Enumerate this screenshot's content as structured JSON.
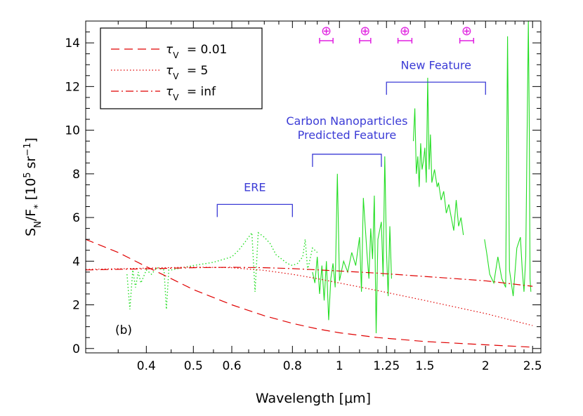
{
  "chart_data": {
    "type": "line",
    "xlabel": "Wavelength [",
    "xlabel_unit": "μm",
    "xlabel_close": "]",
    "ylabel_main": "S",
    "ylabel_sub": "N",
    "ylabel_slash": "/F",
    "ylabel_star": "*",
    "ylabel_bracket": "[10",
    "ylabel_exp5": "5",
    "ylabel_sr": "sr",
    "ylabel_expm1": "−1",
    "ylabel_close": "]",
    "x_scale": "log",
    "xlim": [
      0.3,
      2.6
    ],
    "ylim": [
      -0.2,
      15
    ],
    "x_ticks": [
      {
        "value": 0.4,
        "label": "0.4"
      },
      {
        "value": 0.5,
        "label": "0.5"
      },
      {
        "value": 0.6,
        "label": "0.6"
      },
      {
        "value": 0.8,
        "label": "0.8"
      },
      {
        "value": 1.0,
        "label": "1"
      },
      {
        "value": 1.25,
        "label": "1.25"
      },
      {
        "value": 1.5,
        "label": "1.5"
      },
      {
        "value": 2.0,
        "label": "2"
      },
      {
        "value": 2.5,
        "label": "2.5"
      }
    ],
    "y_ticks": [
      {
        "value": 0,
        "label": "0"
      },
      {
        "value": 2,
        "label": "2"
      },
      {
        "value": 4,
        "label": "4"
      },
      {
        "value": 6,
        "label": "6"
      },
      {
        "value": 8,
        "label": "8"
      },
      {
        "value": 10,
        "label": "10"
      },
      {
        "value": 12,
        "label": "12"
      },
      {
        "value": 14,
        "label": "14"
      }
    ],
    "panel_label": "(b)",
    "legend": {
      "placement": "top-left",
      "symbol": "τ",
      "subscript": "V",
      "entries": [
        {
          "value_text": "= 0.01",
          "style": "dashed",
          "color": "#e00000"
        },
        {
          "value_text": "= 5",
          "style": "dotted",
          "color": "#e00000"
        },
        {
          "value_text": "= inf",
          "style": "dashdot",
          "color": "#e00000"
        }
      ]
    },
    "model_curves": [
      {
        "style": "dashed",
        "color": "#e00000",
        "points": [
          [
            0.3,
            5.0
          ],
          [
            0.35,
            4.4
          ],
          [
            0.4,
            3.75
          ],
          [
            0.45,
            3.2
          ],
          [
            0.5,
            2.7
          ],
          [
            0.6,
            2.0
          ],
          [
            0.7,
            1.5
          ],
          [
            0.8,
            1.15
          ],
          [
            0.9,
            0.9
          ],
          [
            1.0,
            0.72
          ],
          [
            1.2,
            0.5
          ],
          [
            1.5,
            0.32
          ],
          [
            2.0,
            0.17
          ],
          [
            2.5,
            0.06
          ]
        ]
      },
      {
        "style": "dotted",
        "color": "#e00000",
        "points": [
          [
            0.3,
            3.62
          ],
          [
            0.4,
            3.68
          ],
          [
            0.5,
            3.73
          ],
          [
            0.6,
            3.7
          ],
          [
            0.7,
            3.58
          ],
          [
            0.8,
            3.4
          ],
          [
            0.9,
            3.2
          ],
          [
            1.0,
            3.0
          ],
          [
            1.2,
            2.65
          ],
          [
            1.5,
            2.2
          ],
          [
            2.0,
            1.6
          ],
          [
            2.5,
            1.05
          ]
        ]
      },
      {
        "style": "dashdot",
        "color": "#e00000",
        "points": [
          [
            0.3,
            3.6
          ],
          [
            0.4,
            3.65
          ],
          [
            0.5,
            3.7
          ],
          [
            0.6,
            3.72
          ],
          [
            0.7,
            3.7
          ],
          [
            0.8,
            3.66
          ],
          [
            1.0,
            3.55
          ],
          [
            1.2,
            3.45
          ],
          [
            1.5,
            3.3
          ],
          [
            2.0,
            3.1
          ],
          [
            2.5,
            2.85
          ]
        ]
      }
    ],
    "observed_spectrum": {
      "color": "#22dd22",
      "segments": [
        {
          "style": "dotted",
          "points": [
            [
              0.365,
              3.4
            ],
            [
              0.37,
              1.8
            ],
            [
              0.375,
              3.6
            ],
            [
              0.38,
              2.8
            ],
            [
              0.385,
              3.5
            ],
            [
              0.39,
              3.0
            ],
            [
              0.4,
              3.6
            ],
            [
              0.41,
              3.4
            ],
            [
              0.42,
              3.7
            ],
            [
              0.435,
              3.6
            ],
            [
              0.44,
              1.8
            ],
            [
              0.445,
              3.6
            ],
            [
              0.45,
              3.6
            ],
            [
              0.5,
              3.8
            ],
            [
              0.55,
              3.95
            ],
            [
              0.58,
              4.1
            ],
            [
              0.6,
              4.2
            ],
            [
              0.62,
              4.5
            ],
            [
              0.64,
              4.9
            ],
            [
              0.66,
              5.3
            ],
            [
              0.67,
              2.6
            ],
            [
              0.68,
              5.3
            ],
            [
              0.7,
              5.1
            ],
            [
              0.72,
              4.8
            ],
            [
              0.74,
              4.3
            ],
            [
              0.76,
              4.1
            ],
            [
              0.78,
              3.9
            ],
            [
              0.8,
              3.8
            ],
            [
              0.82,
              3.9
            ],
            [
              0.84,
              4.2
            ],
            [
              0.85,
              5.0
            ],
            [
              0.86,
              3.6
            ],
            [
              0.88,
              4.6
            ],
            [
              0.9,
              4.4
            ]
          ]
        },
        {
          "style": "solid",
          "points": [
            [
              0.88,
              3.5
            ],
            [
              0.89,
              3.0
            ],
            [
              0.9,
              4.2
            ],
            [
              0.91,
              2.5
            ],
            [
              0.92,
              3.8
            ],
            [
              0.93,
              2.2
            ],
            [
              0.94,
              4.0
            ],
            [
              0.95,
              1.3
            ],
            [
              0.96,
              3.2
            ],
            [
              0.97,
              3.9
            ],
            [
              0.98,
              2.8
            ],
            [
              0.99,
              8.0
            ],
            [
              1.0,
              3.1
            ],
            [
              1.02,
              4.0
            ],
            [
              1.04,
              3.5
            ],
            [
              1.06,
              4.4
            ],
            [
              1.08,
              3.8
            ],
            [
              1.1,
              5.1
            ],
            [
              1.11,
              2.6
            ],
            [
              1.12,
              6.9
            ],
            [
              1.14,
              4.3
            ],
            [
              1.15,
              3.2
            ],
            [
              1.16,
              5.5
            ],
            [
              1.17,
              4.1
            ],
            [
              1.18,
              7.0
            ],
            [
              1.19,
              0.7
            ],
            [
              1.2,
              5.0
            ],
            [
              1.22,
              5.8
            ],
            [
              1.23,
              3.3
            ],
            [
              1.24,
              8.8
            ],
            [
              1.25,
              4.5
            ],
            [
              1.26,
              2.4
            ],
            [
              1.27,
              5.6
            ],
            [
              1.28,
              3.2
            ]
          ]
        },
        {
          "style": "solid",
          "points": [
            [
              1.42,
              9.5
            ],
            [
              1.43,
              11.0
            ],
            [
              1.44,
              8.0
            ],
            [
              1.45,
              8.8
            ],
            [
              1.46,
              7.4
            ],
            [
              1.47,
              9.4
            ],
            [
              1.48,
              8.2
            ],
            [
              1.49,
              8.6
            ],
            [
              1.5,
              9.2
            ],
            [
              1.51,
              7.6
            ],
            [
              1.52,
              12.4
            ],
            [
              1.53,
              8.2
            ],
            [
              1.54,
              9.8
            ],
            [
              1.55,
              7.6
            ],
            [
              1.57,
              8.2
            ],
            [
              1.59,
              7.4
            ],
            [
              1.6,
              7.6
            ],
            [
              1.62,
              6.8
            ],
            [
              1.64,
              7.2
            ],
            [
              1.66,
              6.2
            ],
            [
              1.68,
              6.6
            ],
            [
              1.7,
              6.0
            ],
            [
              1.72,
              5.4
            ],
            [
              1.74,
              6.8
            ],
            [
              1.76,
              5.6
            ],
            [
              1.78,
              6.0
            ],
            [
              1.8,
              5.2
            ]
          ]
        },
        {
          "style": "solid",
          "points": [
            [
              1.99,
              5.0
            ],
            [
              2.01,
              4.4
            ],
            [
              2.04,
              3.4
            ],
            [
              2.08,
              3.0
            ],
            [
              2.12,
              4.2
            ],
            [
              2.16,
              3.2
            ],
            [
              2.2,
              2.8
            ],
            [
              2.22,
              14.3
            ],
            [
              2.24,
              3.6
            ],
            [
              2.28,
              2.4
            ],
            [
              2.32,
              4.6
            ],
            [
              2.36,
              5.1
            ],
            [
              2.38,
              3.6
            ],
            [
              2.4,
              2.6
            ],
            [
              2.42,
              4.2
            ],
            [
              2.45,
              15
            ],
            [
              2.46,
              10.8
            ],
            [
              2.47,
              3.2
            ],
            [
              2.48,
              2.6
            ]
          ]
        }
      ]
    },
    "annotations": [
      {
        "text": "ERE",
        "bracket_x": [
          0.56,
          0.8
        ],
        "bracket_y": 6.6,
        "text_y": 7.2
      },
      {
        "text": "Carbon Nanoparticles",
        "text2": "Predicted Feature",
        "bracket_x": [
          0.88,
          1.22
        ],
        "bracket_y": 8.9,
        "text_y": 9.6
      },
      {
        "text": "New Feature",
        "bracket_x": [
          1.25,
          2.0
        ],
        "bracket_y": 12.2,
        "text_y": 12.8
      }
    ],
    "telluric_markers": {
      "symbol": "⊕",
      "color": "#e020e0",
      "y": 14.1,
      "ranges": [
        [
          0.91,
          0.97
        ],
        [
          1.1,
          1.16
        ],
        [
          1.32,
          1.41
        ],
        [
          1.77,
          1.89
        ]
      ]
    }
  }
}
